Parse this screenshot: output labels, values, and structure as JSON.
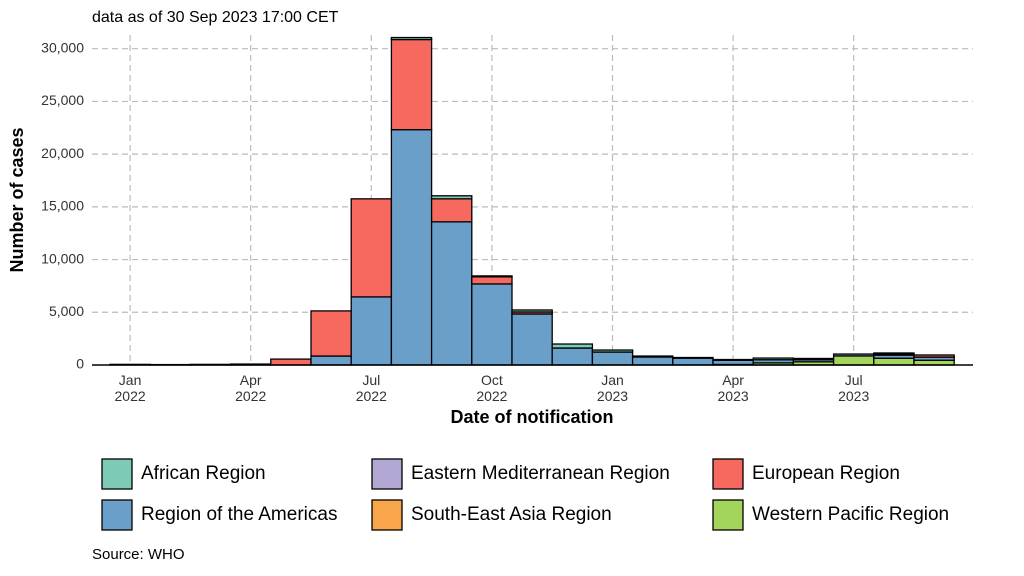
{
  "chart_data": {
    "type": "stacked_bar",
    "subtitle": "data as of 30 Sep 2023 17:00 CET",
    "y_label": "Number of cases",
    "x_label": "Date of notification",
    "source": "Source: WHO",
    "categories": [
      "Jan\n2022",
      null,
      null,
      "Apr\n2022",
      null,
      null,
      "Jul\n2022",
      null,
      null,
      "Oct\n2022",
      null,
      null,
      "Jan\n2023",
      null,
      null,
      "Apr\n2023",
      null,
      null,
      "Jul\n2023",
      null,
      null
    ],
    "series": [
      {
        "name": "African Region",
        "color": "#7dcbb6",
        "values": [
          60,
          40,
          60,
          0,
          0,
          0,
          0,
          190,
          290,
          90,
          190,
          380,
          190,
          90,
          60,
          70,
          160,
          120,
          0,
          100,
          0
        ]
      },
      {
        "name": "Eastern Mediterranean Region",
        "color": "#b1a7d2",
        "values": [
          0,
          0,
          0,
          0,
          0,
          0,
          0,
          0,
          0,
          0,
          0,
          0,
          0,
          0,
          0,
          0,
          0,
          0,
          0,
          0,
          0
        ]
      },
      {
        "name": "European Region",
        "color": "#f7685f",
        "values": [
          0,
          0,
          0,
          90,
          560,
          4280,
          9300,
          8550,
          2180,
          670,
          190,
          0,
          0,
          0,
          0,
          0,
          0,
          0,
          0,
          100,
          200
        ]
      },
      {
        "name": "Region of the Americas",
        "color": "#6a9fc9",
        "values": [
          0,
          0,
          0,
          0,
          0,
          850,
          6460,
          22320,
          13580,
          7690,
          4840,
          1610,
          1230,
          760,
          650,
          400,
          300,
          200,
          180,
          300,
          300
        ]
      },
      {
        "name": "South-East Asia Region",
        "color": "#f9a54b",
        "values": [
          0,
          0,
          0,
          0,
          0,
          0,
          0,
          0,
          0,
          0,
          0,
          0,
          0,
          0,
          0,
          0,
          0,
          0,
          0,
          0,
          0
        ]
      },
      {
        "name": "Western Pacific Region",
        "color": "#a3d45c",
        "values": [
          0,
          0,
          0,
          0,
          0,
          0,
          0,
          0,
          0,
          0,
          0,
          0,
          0,
          0,
          0,
          50,
          200,
          300,
          860,
          640,
          450
        ]
      }
    ],
    "stack_order": "legend-reversed",
    "ylim": [
      0,
      31300
    ],
    "yticks": [
      0,
      {
        "value": 5000,
        "label": "5,000"
      },
      {
        "value": 10000,
        "label": "10,000"
      },
      {
        "value": 15000,
        "label": "15,000"
      },
      {
        "value": 20000,
        "label": "20,000"
      },
      {
        "value": 25000,
        "label": "25,000"
      },
      {
        "value": 30000,
        "label": "30,000"
      }
    ],
    "grid": true
  }
}
